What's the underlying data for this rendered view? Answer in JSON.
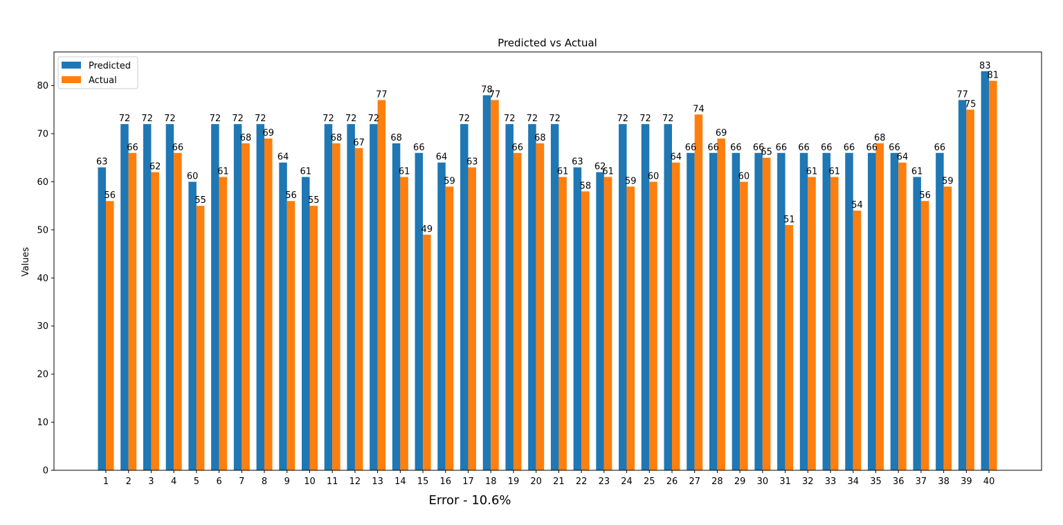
{
  "chart_data": {
    "type": "bar",
    "title": "Predicted vs Actual",
    "xlabel": "",
    "ylabel": "Values",
    "footer_text": "Error - 10.6%",
    "categories": [
      "1",
      "2",
      "3",
      "4",
      "5",
      "6",
      "7",
      "8",
      "9",
      "10",
      "11",
      "12",
      "13",
      "14",
      "15",
      "16",
      "17",
      "18",
      "19",
      "20",
      "21",
      "22",
      "23",
      "24",
      "25",
      "26",
      "27",
      "28",
      "29",
      "30",
      "31",
      "32",
      "33",
      "34",
      "35",
      "36",
      "37",
      "38",
      "39",
      "40"
    ],
    "series": [
      {
        "name": "Predicted",
        "color": "#1f77b4",
        "values": [
          63,
          72,
          72,
          72,
          60,
          72,
          72,
          72,
          64,
          61,
          72,
          72,
          72,
          68,
          66,
          64,
          72,
          78,
          72,
          72,
          72,
          63,
          62,
          72,
          72,
          72,
          66,
          66,
          66,
          66,
          66,
          66,
          66,
          66,
          66,
          66,
          61,
          66,
          77,
          83
        ]
      },
      {
        "name": "Actual",
        "color": "#ff7f0e",
        "values": [
          56,
          66,
          62,
          66,
          55,
          61,
          68,
          69,
          56,
          55,
          68,
          67,
          77,
          61,
          49,
          59,
          63,
          77,
          66,
          68,
          61,
          58,
          61,
          59,
          60,
          64,
          74,
          69,
          60,
          65,
          51,
          61,
          61,
          54,
          68,
          64,
          56,
          59,
          75,
          81
        ]
      }
    ],
    "ylim": [
      0,
      87
    ],
    "yticks": [
      0,
      10,
      20,
      30,
      40,
      50,
      60,
      70,
      80
    ],
    "legend_position": "upper left",
    "grid": false
  }
}
